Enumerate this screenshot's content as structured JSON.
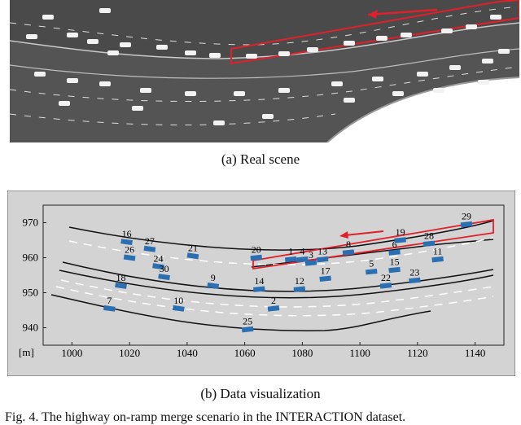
{
  "captions": {
    "real_scene": "(a) Real scene",
    "data_visualization": "(b) Data visualization",
    "figure": "Fig. 4.  The highway on-ramp merge scenario in the INTERACTION dataset."
  },
  "colors": {
    "road": "#4a4a4a",
    "highlight_box": "#e0202a",
    "plot_bg": "#d3d3d3",
    "vehicle": "#2a6fb2",
    "lane_dash": "#ffffff"
  },
  "chart_data": {
    "type": "scatter",
    "xlabel": "[m]",
    "ylabel": "",
    "xlim": [
      990,
      1150
    ],
    "ylim": [
      935,
      975
    ],
    "xticks": [
      "1000",
      "1020",
      "1040",
      "1060",
      "1080",
      "1100",
      "1120",
      "1140"
    ],
    "yticks": [
      "970",
      "960",
      "950",
      "940"
    ],
    "grid": false,
    "series": [
      {
        "values": [
          {
            "label": "1",
            "x": 1076,
            "y": 959.5
          },
          {
            "label": "2",
            "x": 1070,
            "y": 945.5
          },
          {
            "label": "3",
            "x": 1083,
            "y": 958.5
          },
          {
            "label": "4",
            "x": 1080,
            "y": 959.5
          },
          {
            "label": "5",
            "x": 1104,
            "y": 956
          },
          {
            "label": "6",
            "x": 1112,
            "y": 961.5
          },
          {
            "label": "7",
            "x": 1013,
            "y": 945.5
          },
          {
            "label": "8",
            "x": 1096,
            "y": 961.5
          },
          {
            "label": "9",
            "x": 1049,
            "y": 952
          },
          {
            "label": "10",
            "x": 1037,
            "y": 945.5
          },
          {
            "label": "11",
            "x": 1127,
            "y": 959.5
          },
          {
            "label": "12",
            "x": 1079,
            "y": 951
          },
          {
            "label": "13",
            "x": 1087,
            "y": 959.5
          },
          {
            "label": "14",
            "x": 1065,
            "y": 951
          },
          {
            "label": "15",
            "x": 1112,
            "y": 956.5
          },
          {
            "label": "16",
            "x": 1019,
            "y": 964.5
          },
          {
            "label": "17",
            "x": 1088,
            "y": 954
          },
          {
            "label": "18",
            "x": 1017,
            "y": 952
          },
          {
            "label": "19",
            "x": 1114,
            "y": 965
          },
          {
            "label": "20",
            "x": 1064,
            "y": 960
          },
          {
            "label": "21",
            "x": 1042,
            "y": 960.5
          },
          {
            "label": "22",
            "x": 1109,
            "y": 952
          },
          {
            "label": "23",
            "x": 1119,
            "y": 953.5
          },
          {
            "label": "24",
            "x": 1030,
            "y": 957.5
          },
          {
            "label": "25",
            "x": 1061,
            "y": 939.5
          },
          {
            "label": "26",
            "x": 1020,
            "y": 960
          },
          {
            "label": "27",
            "x": 1027,
            "y": 962.5
          },
          {
            "label": "28",
            "x": 1124,
            "y": 964
          },
          {
            "label": "29",
            "x": 1137,
            "y": 969.5
          },
          {
            "label": "30",
            "x": 1032,
            "y": 954.5
          }
        ]
      }
    ]
  }
}
